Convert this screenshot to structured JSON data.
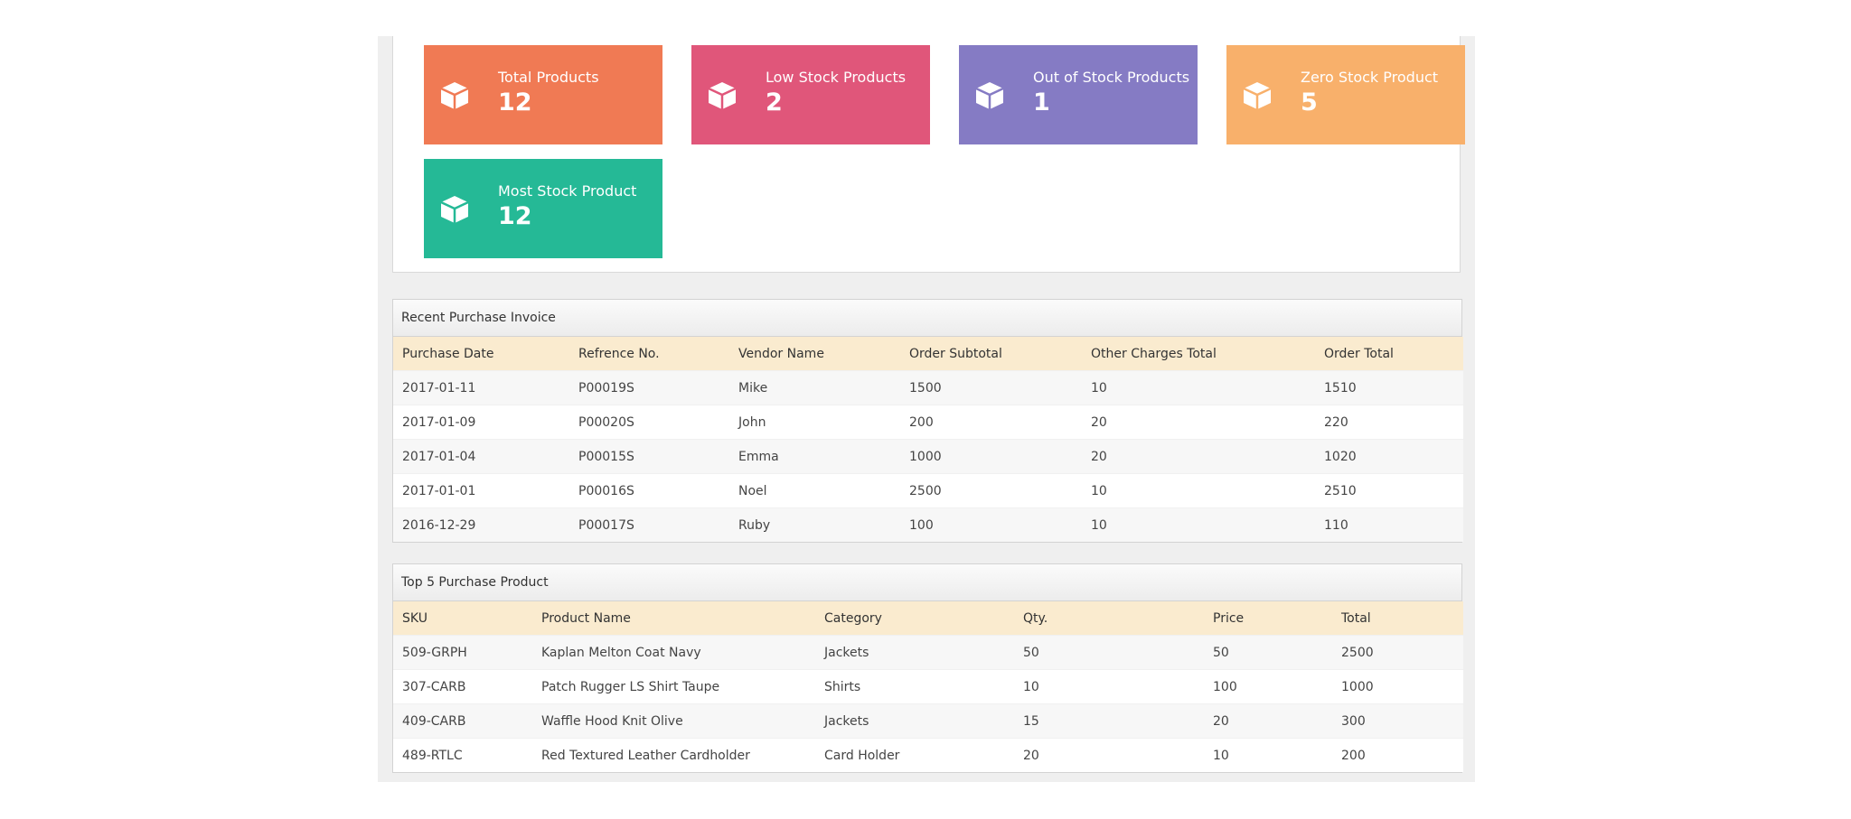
{
  "stats": [
    {
      "label": "Total Products",
      "value": "12",
      "color": "#f07a54",
      "icon": "cube-icon"
    },
    {
      "label": "Low Stock Products",
      "value": "2",
      "color": "#e0567a",
      "icon": "cube-icon"
    },
    {
      "label": "Out of Stock Products",
      "value": "1",
      "color": "#857bc4",
      "icon": "cube-icon"
    },
    {
      "label": "Zero Stock Product",
      "value": "5",
      "color": "#f8b06b",
      "icon": "cube-icon"
    },
    {
      "label": "Most Stock Product",
      "value": "12",
      "color": "#25b996",
      "icon": "cube-icon"
    }
  ],
  "invoices": {
    "title": "Recent Purchase Invoice",
    "columns": [
      "Purchase Date",
      "Refrence No.",
      "Vendor Name",
      "Order Subtotal",
      "Other Charges Total",
      "Order Total"
    ],
    "rows": [
      [
        "2017-01-11",
        "P00019S",
        "Mike",
        "1500",
        "10",
        "1510"
      ],
      [
        "2017-01-09",
        "P00020S",
        "John",
        "200",
        "20",
        "220"
      ],
      [
        "2017-01-04",
        "P00015S",
        "Emma",
        "1000",
        "20",
        "1020"
      ],
      [
        "2017-01-01",
        "P00016S",
        "Noel",
        "2500",
        "10",
        "2510"
      ],
      [
        "2016-12-29",
        "P00017S",
        "Ruby",
        "100",
        "10",
        "110"
      ]
    ]
  },
  "products": {
    "title": "Top 5 Purchase Product",
    "columns": [
      "SKU",
      "Product Name",
      "Category",
      "Qty.",
      "Price",
      "Total"
    ],
    "rows": [
      [
        "509-GRPH",
        "Kaplan Melton Coat Navy",
        "Jackets",
        "50",
        "50",
        "2500"
      ],
      [
        "307-CARB",
        "Patch Rugger LS Shirt Taupe",
        "Shirts",
        "10",
        "100",
        "1000"
      ],
      [
        "409-CARB",
        "Waffle Hood Knit Olive",
        "Jackets",
        "15",
        "20",
        "300"
      ],
      [
        "489-RTLC",
        "Red Textured Leather Cardholder",
        "Card Holder",
        "20",
        "10",
        "200"
      ]
    ]
  }
}
